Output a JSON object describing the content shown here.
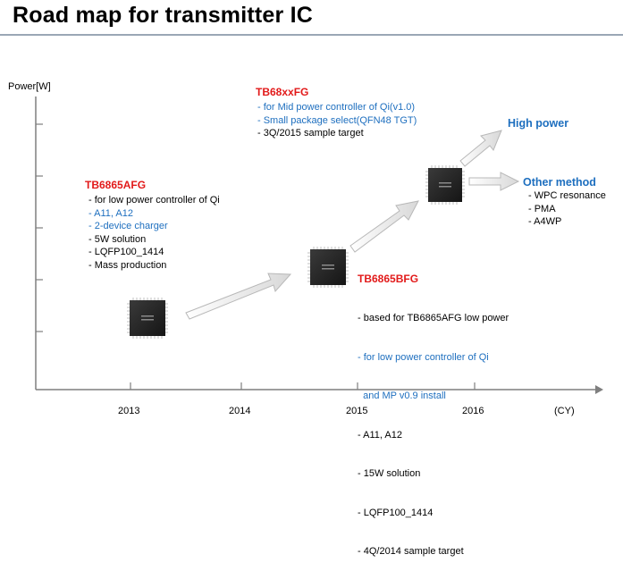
{
  "title": "Road map for transmitter IC",
  "y_axis_label": "Power[W]",
  "x_axis": {
    "ticks": [
      "2013",
      "2014",
      "2015",
      "2016"
    ],
    "unit": "(CY)"
  },
  "products": [
    {
      "name": "TB6865AFG",
      "lines": [
        {
          "text": "- for low power controller of Qi",
          "color": "black"
        },
        {
          "text": "- A11, A12",
          "color": "blue"
        },
        {
          "text": "- 2-device charger",
          "color": "blue"
        },
        {
          "text": "- 5W solution",
          "color": "black"
        },
        {
          "text": "- LQFP100_1414",
          "color": "black"
        },
        {
          "text": "- Mass production",
          "color": "black"
        }
      ]
    },
    {
      "name": "TB68xxFG",
      "lines": [
        {
          "text": "- for Mid power controller of Qi(v1.0)",
          "color": "blue"
        },
        {
          "text": "- Small package select(QFN48 TGT)",
          "color": "blue"
        },
        {
          "text": "- 3Q/2015 sample target",
          "color": "black"
        }
      ]
    },
    {
      "name": "TB6865BFG",
      "lines": [
        {
          "text": "- based for TB6865AFG low power",
          "color": "black"
        },
        {
          "text": "- for low power controller of Qi",
          "color": "blue"
        },
        {
          "text": "  and MP v0.9 install",
          "color": "blue"
        },
        {
          "text": "- A11, A12",
          "color": "black"
        },
        {
          "text": "- 15W solution",
          "color": "black"
        },
        {
          "text": "- LQFP100_1414",
          "color": "black"
        },
        {
          "text": "- 4Q/2014 sample target",
          "color": "black"
        }
      ]
    }
  ],
  "high_power": "High power",
  "other_method": {
    "title": "Other method",
    "items": [
      "- WPC resonance",
      "- PMA",
      "- A4WP"
    ]
  },
  "colors": {
    "product_name": "#e21a1a",
    "blue_text": "#1e6fbf",
    "axis": "#7f7f7f",
    "title_rule": "#9aa7b5"
  }
}
